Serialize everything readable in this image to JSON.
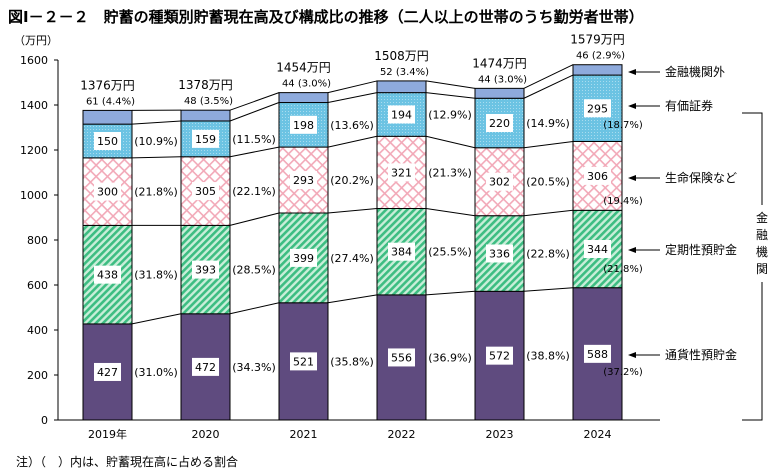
{
  "title": "図Ⅰ－２－２　貯蓄の種類別貯蓄現在高及び構成比の推移（二人以上の世帯のうち勤労者世帯）",
  "footnote": "注）（　）内は、貯蓄現在高に占める割合",
  "chart_data": {
    "type": "bar",
    "stacked": true,
    "title": "図Ⅰ－２－２　貯蓄の種類別貯蓄現在高及び構成比の推移（二人以上の世帯のうち勤労者世帯）",
    "ylabel": "（万円）",
    "ylim": [
      0,
      1600
    ],
    "yticks": [
      0,
      200,
      400,
      600,
      800,
      1000,
      1200,
      1400,
      1600
    ],
    "grid": false,
    "legend": "right",
    "categories": [
      "2019年",
      "2020",
      "2021",
      "2022",
      "2023",
      "2024"
    ],
    "totals": [
      "1376万円",
      "1378万円",
      "1454万円",
      "1508万円",
      "1474万円",
      "1579万円"
    ],
    "group_label": "金融機関",
    "series": [
      {
        "name": "通貨性預貯金",
        "color": "#5f4b7f",
        "values": [
          427,
          472,
          521,
          556,
          572,
          588
        ],
        "pct": [
          "(31.0%)",
          "(34.3%)",
          "(35.8%)",
          "(36.9%)",
          "(38.8%)",
          "(37.2%)"
        ]
      },
      {
        "name": "定期性預貯金",
        "color": "#4cc48c",
        "values": [
          438,
          393,
          399,
          384,
          336,
          344
        ],
        "pct": [
          "(31.8%)",
          "(28.5%)",
          "(27.4%)",
          "(25.5%)",
          "(22.8%)",
          "(21.8%)"
        ]
      },
      {
        "name": "生命保険など",
        "color": "#f2a9b8",
        "values": [
          300,
          305,
          293,
          321,
          302,
          306
        ],
        "pct": [
          "(21.8%)",
          "(22.1%)",
          "(20.2%)",
          "(21.3%)",
          "(20.5%)",
          "(19.4%)"
        ]
      },
      {
        "name": "有価証券",
        "color": "#6cc3e3",
        "values": [
          150,
          159,
          198,
          194,
          220,
          295
        ],
        "pct": [
          "(10.9%)",
          "(11.5%)",
          "(13.6%)",
          "(12.9%)",
          "(14.9%)",
          "(18.7%)"
        ]
      },
      {
        "name": "金融機関外",
        "color": "#8eaadc",
        "values": [
          61,
          48,
          44,
          52,
          44,
          46
        ],
        "pct": [
          "(4.4%)",
          "(3.5%)",
          "(3.0%)",
          "(3.4%)",
          "(3.0%)",
          "(2.9%)"
        ]
      }
    ]
  }
}
